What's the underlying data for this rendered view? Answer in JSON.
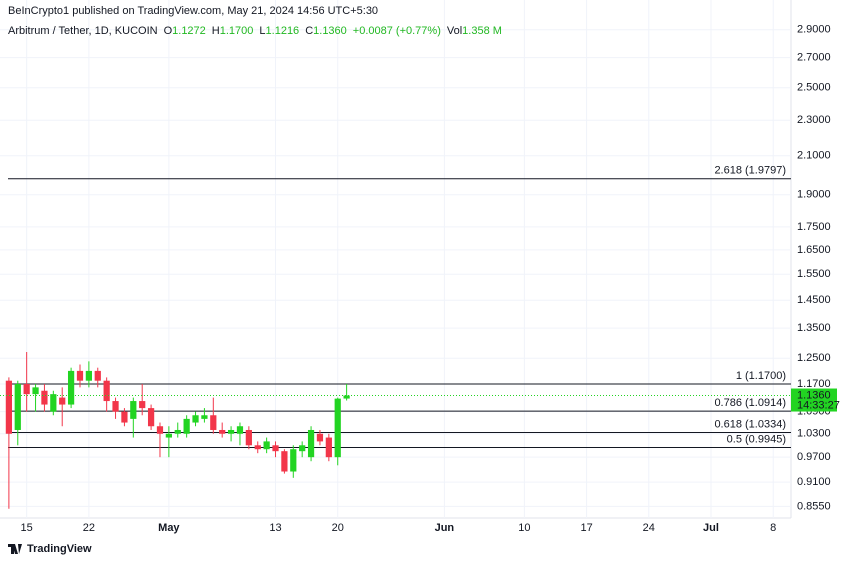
{
  "header": {
    "published": "BeInCrypto1 published on TradingView.com, May 21, 2024 14:56 UTC+5:30"
  },
  "legend": {
    "symbol": "Arbitrum / Tether, 1D, KUCOIN",
    "fields": [
      {
        "key": "O",
        "value": "1.1272"
      },
      {
        "key": "H",
        "value": "1.1700"
      },
      {
        "key": "L",
        "value": "1.1216"
      },
      {
        "key": "C",
        "value": "1.1360"
      },
      {
        "key": "",
        "value": "+0.0087 (+0.77%)"
      },
      {
        "key": "Vol",
        "value": "1.358 M"
      }
    ]
  },
  "footer": {
    "brand": "TradingView"
  },
  "chart_data": {
    "type": "candlestick",
    "log_scale": true,
    "grid": true,
    "up_color": "#22d422",
    "down_color": "#f2364a",
    "xlim": [
      "2024-04-12",
      "2024-07-10"
    ],
    "xticks": [
      {
        "value": "2024-04-15",
        "label": "15"
      },
      {
        "value": "2024-04-22",
        "label": "22"
      },
      {
        "value": "2024-05-01",
        "label": "May"
      },
      {
        "value": "2024-05-13",
        "label": "13"
      },
      {
        "value": "2024-05-20",
        "label": "20"
      },
      {
        "value": "2024-06-01",
        "label": "Jun"
      },
      {
        "value": "2024-06-10",
        "label": "10"
      },
      {
        "value": "2024-06-17",
        "label": "17"
      },
      {
        "value": "2024-06-24",
        "label": "24"
      },
      {
        "value": "2024-07-01",
        "label": "Jul"
      },
      {
        "value": "2024-07-08",
        "label": "8"
      }
    ],
    "ylim": [
      0.83,
      3.13
    ],
    "yticks": [
      {
        "value": 2.9,
        "label": "2.9000"
      },
      {
        "value": 2.7,
        "label": "2.7000"
      },
      {
        "value": 2.5,
        "label": "2.5000"
      },
      {
        "value": 2.3,
        "label": "2.3000"
      },
      {
        "value": 2.1,
        "label": "2.1000"
      },
      {
        "value": 1.9,
        "label": "1.9000"
      },
      {
        "value": 1.75,
        "label": "1.7500"
      },
      {
        "value": 1.65,
        "label": "1.6500"
      },
      {
        "value": 1.55,
        "label": "1.5500"
      },
      {
        "value": 1.45,
        "label": "1.4500"
      },
      {
        "value": 1.35,
        "label": "1.3500"
      },
      {
        "value": 1.25,
        "label": "1.2500"
      },
      {
        "value": 1.17,
        "label": "1.1700"
      },
      {
        "value": 1.09,
        "label": "1.0900"
      },
      {
        "value": 1.03,
        "label": "1.0300"
      },
      {
        "value": 0.97,
        "label": "0.9700"
      },
      {
        "value": 0.91,
        "label": "0.9100"
      },
      {
        "value": 0.855,
        "label": "0.8550"
      }
    ],
    "candles": [
      {
        "x": "2024-04-13",
        "open": 1.18,
        "high": 1.19,
        "low": 0.85,
        "close": 1.03
      },
      {
        "x": "2024-04-14",
        "open": 1.04,
        "high": 1.18,
        "low": 1.0,
        "close": 1.17
      },
      {
        "x": "2024-04-15",
        "open": 1.17,
        "high": 1.27,
        "low": 1.09,
        "close": 1.14
      },
      {
        "x": "2024-04-16",
        "open": 1.14,
        "high": 1.17,
        "low": 1.09,
        "close": 1.16
      },
      {
        "x": "2024-04-17",
        "open": 1.15,
        "high": 1.17,
        "low": 1.09,
        "close": 1.11
      },
      {
        "x": "2024-04-18",
        "open": 1.09,
        "high": 1.15,
        "low": 1.08,
        "close": 1.14
      },
      {
        "x": "2024-04-19",
        "open": 1.13,
        "high": 1.16,
        "low": 1.05,
        "close": 1.11
      },
      {
        "x": "2024-04-20",
        "open": 1.11,
        "high": 1.22,
        "low": 1.1,
        "close": 1.21
      },
      {
        "x": "2024-04-21",
        "open": 1.21,
        "high": 1.23,
        "low": 1.16,
        "close": 1.18
      },
      {
        "x": "2024-04-22",
        "open": 1.18,
        "high": 1.24,
        "low": 1.16,
        "close": 1.21
      },
      {
        "x": "2024-04-23",
        "open": 1.21,
        "high": 1.22,
        "low": 1.16,
        "close": 1.18
      },
      {
        "x": "2024-04-24",
        "open": 1.18,
        "high": 1.19,
        "low": 1.09,
        "close": 1.12
      },
      {
        "x": "2024-04-25",
        "open": 1.12,
        "high": 1.13,
        "low": 1.07,
        "close": 1.09
      },
      {
        "x": "2024-04-26",
        "open": 1.09,
        "high": 1.1,
        "low": 1.05,
        "close": 1.06
      },
      {
        "x": "2024-04-27",
        "open": 1.07,
        "high": 1.13,
        "low": 1.02,
        "close": 1.12
      },
      {
        "x": "2024-04-28",
        "open": 1.12,
        "high": 1.17,
        "low": 1.08,
        "close": 1.1
      },
      {
        "x": "2024-04-29",
        "open": 1.1,
        "high": 1.11,
        "low": 1.04,
        "close": 1.05
      },
      {
        "x": "2024-04-30",
        "open": 1.05,
        "high": 1.06,
        "low": 0.97,
        "close": 1.03
      },
      {
        "x": "2024-05-01",
        "open": 1.02,
        "high": 1.05,
        "low": 0.97,
        "close": 1.03
      },
      {
        "x": "2024-05-02",
        "open": 1.03,
        "high": 1.06,
        "low": 1.02,
        "close": 1.04
      },
      {
        "x": "2024-05-03",
        "open": 1.03,
        "high": 1.08,
        "low": 1.02,
        "close": 1.07
      },
      {
        "x": "2024-05-04",
        "open": 1.06,
        "high": 1.09,
        "low": 1.05,
        "close": 1.08
      },
      {
        "x": "2024-05-05",
        "open": 1.07,
        "high": 1.1,
        "low": 1.06,
        "close": 1.08
      },
      {
        "x": "2024-05-06",
        "open": 1.08,
        "high": 1.13,
        "low": 1.03,
        "close": 1.04
      },
      {
        "x": "2024-05-07",
        "open": 1.04,
        "high": 1.06,
        "low": 1.02,
        "close": 1.03
      },
      {
        "x": "2024-05-08",
        "open": 1.03,
        "high": 1.05,
        "low": 1.01,
        "close": 1.04
      },
      {
        "x": "2024-05-09",
        "open": 1.03,
        "high": 1.06,
        "low": 1.0,
        "close": 1.05
      },
      {
        "x": "2024-05-10",
        "open": 1.04,
        "high": 1.05,
        "low": 0.99,
        "close": 1.0
      },
      {
        "x": "2024-05-11",
        "open": 1.0,
        "high": 1.01,
        "low": 0.98,
        "close": 0.99
      },
      {
        "x": "2024-05-12",
        "open": 0.99,
        "high": 1.02,
        "low": 0.98,
        "close": 1.01
      },
      {
        "x": "2024-05-13",
        "open": 1.0,
        "high": 1.01,
        "low": 0.97,
        "close": 0.985
      },
      {
        "x": "2024-05-14",
        "open": 0.985,
        "high": 0.99,
        "low": 0.93,
        "close": 0.935
      },
      {
        "x": "2024-05-15",
        "open": 0.935,
        "high": 1.0,
        "low": 0.92,
        "close": 0.99
      },
      {
        "x": "2024-05-16",
        "open": 0.985,
        "high": 1.01,
        "low": 0.97,
        "close": 1.0
      },
      {
        "x": "2024-05-17",
        "open": 0.97,
        "high": 1.05,
        "low": 0.96,
        "close": 1.04
      },
      {
        "x": "2024-05-18",
        "open": 1.03,
        "high": 1.04,
        "low": 1.0,
        "close": 1.01
      },
      {
        "x": "2024-05-19",
        "open": 1.02,
        "high": 1.03,
        "low": 0.96,
        "close": 0.97
      },
      {
        "x": "2024-05-20",
        "open": 0.97,
        "high": 1.13,
        "low": 0.95,
        "close": 1.127
      },
      {
        "x": "2024-05-21",
        "open": 1.1272,
        "high": 1.17,
        "low": 1.1216,
        "close": 1.136
      }
    ],
    "fib_levels": [
      {
        "value": 1.9797,
        "label": "2.618 (1.9797)"
      },
      {
        "value": 1.17,
        "label": "1 (1.1700)"
      },
      {
        "value": 1.0914,
        "label": "0.786 (1.0914)"
      },
      {
        "value": 1.0334,
        "label": "0.618 (1.0334)"
      },
      {
        "value": 0.9945,
        "label": "0.5 (0.9945)"
      }
    ],
    "last_price": {
      "value": 1.136,
      "label": "1.1360"
    },
    "countdown": "14:33:27"
  }
}
